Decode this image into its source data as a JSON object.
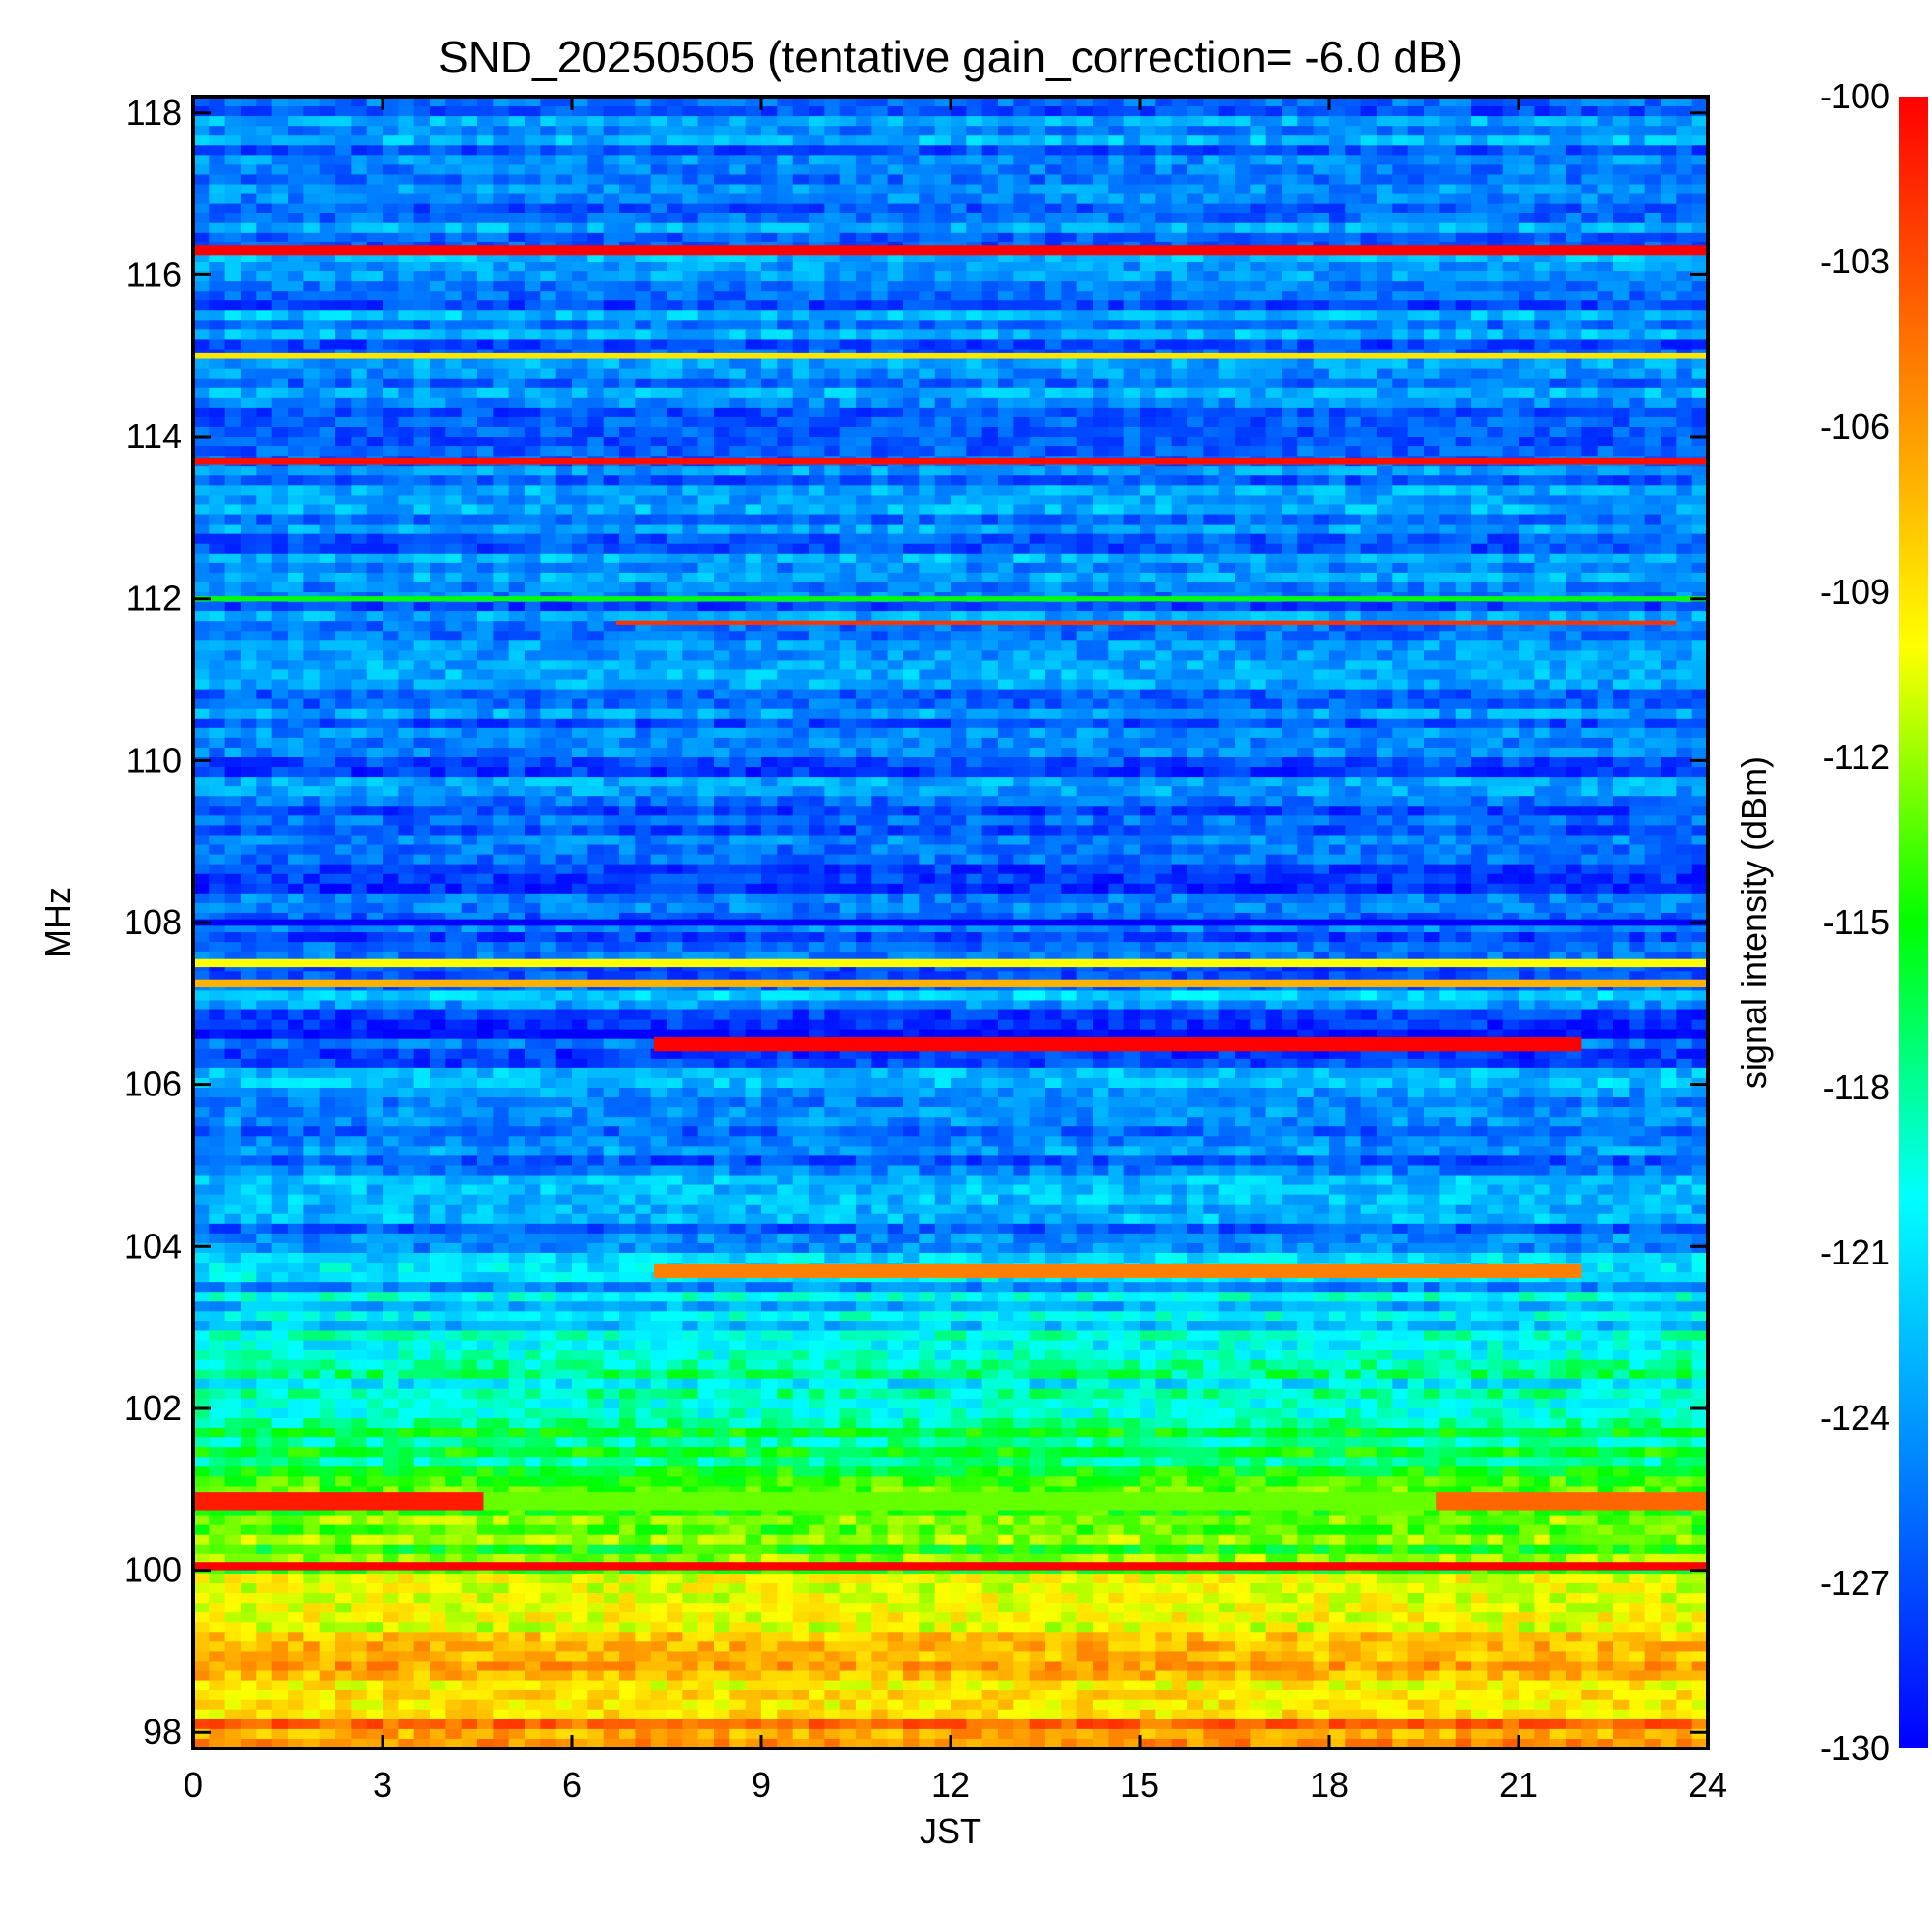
{
  "chart_data": {
    "type": "heatmap",
    "title": "SND_20250505 (tentative gain_correction= -6.0 dB)",
    "xlabel": "JST",
    "ylabel": "MHz",
    "colorbar_label": "signal intensity (dBm)",
    "xlim": [
      0,
      24
    ],
    "ylim": [
      97.8,
      118.2
    ],
    "clim": [
      -130,
      -100
    ],
    "x_ticks": [
      0,
      3,
      6,
      9,
      12,
      15,
      18,
      21,
      24
    ],
    "y_ticks": [
      98,
      100,
      102,
      104,
      106,
      108,
      110,
      112,
      114,
      116,
      118
    ],
    "colorbar_ticks": [
      -100,
      -103,
      -106,
      -109,
      -112,
      -115,
      -118,
      -121,
      -124,
      -127,
      -130
    ],
    "colormap": [
      "#0000ff",
      "#0080ff",
      "#00ffff",
      "#00ff00",
      "#ffff00",
      "#ff8000",
      "#ff0000"
    ],
    "background_profile": [
      {
        "mhz": 97.8,
        "dbm": -105
      },
      {
        "mhz": 99.0,
        "dbm": -109
      },
      {
        "mhz": 100.0,
        "dbm": -113
      },
      {
        "mhz": 101.5,
        "dbm": -116
      },
      {
        "mhz": 103.0,
        "dbm": -121
      },
      {
        "mhz": 104.5,
        "dbm": -125
      },
      {
        "mhz": 106.0,
        "dbm": -124
      },
      {
        "mhz": 106.6,
        "dbm": -128.5
      },
      {
        "mhz": 107.0,
        "dbm": -124
      },
      {
        "mhz": 108.2,
        "dbm": -126
      },
      {
        "mhz": 112.0,
        "dbm": -125
      },
      {
        "mhz": 118.2,
        "dbm": -125
      }
    ],
    "bands": [
      {
        "mhz": 116.3,
        "t0": 0,
        "t1": 24,
        "dbm": -100,
        "width": 0.12
      },
      {
        "mhz": 115.0,
        "t0": 0,
        "t1": 24,
        "dbm": -109,
        "width": 0.08
      },
      {
        "mhz": 113.7,
        "t0": 0,
        "t1": 24,
        "dbm": -100.5,
        "width": 0.08
      },
      {
        "mhz": 112.0,
        "t0": 0,
        "t1": 24,
        "dbm": -115,
        "width": 0.06
      },
      {
        "mhz": 111.7,
        "t0": 6.7,
        "t1": 23.5,
        "dbm": -102,
        "width": 0.05
      },
      {
        "mhz": 108.0,
        "t0": 0,
        "t1": 24,
        "dbm": -133,
        "width": 0.08
      },
      {
        "mhz": 107.5,
        "t0": 0,
        "t1": 24,
        "dbm": -110,
        "width": 0.1
      },
      {
        "mhz": 107.25,
        "t0": 0,
        "t1": 24,
        "dbm": -107,
        "width": 0.1
      },
      {
        "mhz": 106.5,
        "t0": 7.3,
        "t1": 22.0,
        "dbm": -100,
        "width": 0.18
      },
      {
        "mhz": 103.7,
        "t0": 7.3,
        "t1": 22.0,
        "dbm": -105,
        "width": 0.18
      },
      {
        "mhz": 100.85,
        "t0": 0,
        "t1": 4.6,
        "dbm": -101,
        "width": 0.22
      },
      {
        "mhz": 100.85,
        "t0": 19.7,
        "t1": 24,
        "dbm": -104,
        "width": 0.22
      },
      {
        "mhz": 100.85,
        "t0": 4.6,
        "t1": 19.7,
        "dbm": -113,
        "width": 0.22
      },
      {
        "mhz": 100.05,
        "t0": 0,
        "t1": 24,
        "dbm": -100,
        "width": 0.1
      }
    ]
  }
}
